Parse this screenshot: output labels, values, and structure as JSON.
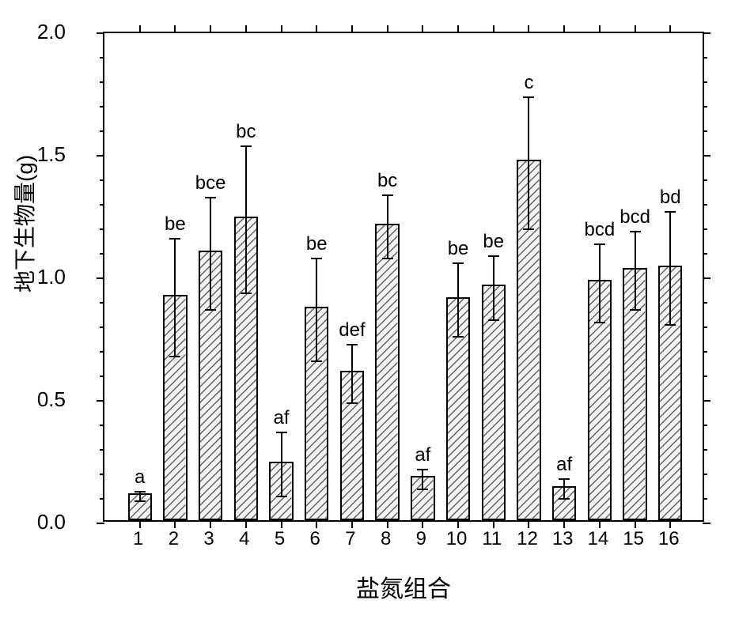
{
  "chart": {
    "type": "bar",
    "ylabel": "地下生物量(g)",
    "xlabel": "盐氮组合",
    "ylim": [
      0.0,
      2.0
    ],
    "ytick_step": 0.5,
    "yminor_step": 0.1,
    "yticks": [
      0.0,
      0.5,
      1.0,
      1.5,
      2.0
    ],
    "ytick_labels": [
      "0.0",
      "0.5",
      "1.0",
      "1.5",
      "2.0"
    ],
    "categories": [
      "1",
      "2",
      "3",
      "4",
      "5",
      "6",
      "7",
      "8",
      "9",
      "10",
      "11",
      "12",
      "13",
      "14",
      "15",
      "16"
    ],
    "values": [
      0.11,
      0.92,
      1.1,
      1.24,
      0.24,
      0.87,
      0.61,
      1.21,
      0.18,
      0.91,
      0.96,
      1.47,
      0.14,
      0.98,
      1.03,
      1.04
    ],
    "errors": [
      0.02,
      0.24,
      0.23,
      0.3,
      0.13,
      0.21,
      0.12,
      0.13,
      0.04,
      0.15,
      0.13,
      0.27,
      0.04,
      0.16,
      0.16,
      0.23
    ],
    "sig_labels": [
      "a",
      "be",
      "bce",
      "bc",
      "af",
      "be",
      "def",
      "bc",
      "af",
      "be",
      "be",
      "c",
      "af",
      "bcd",
      "bcd",
      "bd"
    ],
    "bar_fill": "#f3f3f3",
    "bar_border": "#000000",
    "hatch_color": "#646464",
    "background_color": "#ffffff",
    "axis_color": "#000000",
    "label_color": "#000000",
    "bar_width": 0.68,
    "ylabel_fontsize": 28,
    "xlabel_fontsize": 30,
    "tick_fontsize": 24,
    "sig_fontsize": 24
  }
}
